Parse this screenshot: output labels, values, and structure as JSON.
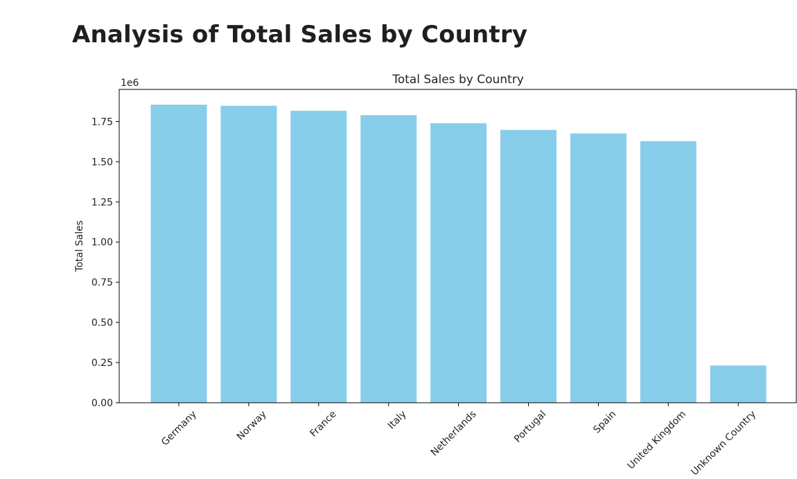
{
  "page": {
    "heading": "Analysis of Total Sales by Country"
  },
  "chart_data": {
    "type": "bar",
    "title": "Total Sales by Country",
    "xlabel": "",
    "ylabel": "Total Sales",
    "scale_label": "1e6",
    "categories": [
      "Germany",
      "Norway",
      "France",
      "Italy",
      "Netherlands",
      "Portugal",
      "Spain",
      "United Kingdom",
      "Unknown Country"
    ],
    "values": [
      1855000,
      1848000,
      1817000,
      1790000,
      1740000,
      1698000,
      1676000,
      1628000,
      232000
    ],
    "ylim": [
      0,
      1.95
    ],
    "yticks": [
      0.0,
      0.25,
      0.5,
      0.75,
      1.0,
      1.25,
      1.5,
      1.75
    ],
    "ytick_labels": [
      "0.00",
      "0.25",
      "0.50",
      "0.75",
      "1.00",
      "1.25",
      "1.50",
      "1.75"
    ],
    "bar_color": "#87ceeb",
    "grid": false,
    "legend": "none",
    "xtick_rotation_deg": 45
  }
}
